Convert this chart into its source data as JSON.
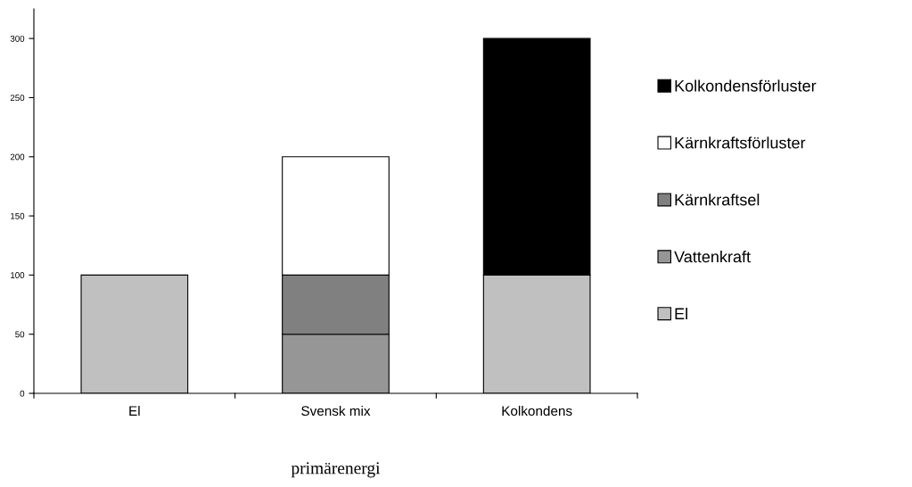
{
  "chart_data": {
    "type": "bar",
    "stacked": true,
    "xlabel": "primärenergi",
    "categories": [
      "El",
      "Svensk mix",
      "Kolkondens"
    ],
    "series": [
      {
        "name": "El",
        "color": "#c0c0c0",
        "values": [
          100,
          null,
          100
        ]
      },
      {
        "name": "Vattenkraft",
        "color": "#969696",
        "values": [
          null,
          50,
          null
        ]
      },
      {
        "name": "Kärnkraftsel",
        "color": "#808080",
        "values": [
          null,
          50,
          null
        ]
      },
      {
        "name": "Kärnkraftsförluster",
        "color": "#ffffff",
        "values": [
          null,
          100,
          null
        ]
      },
      {
        "name": "Kolkondensförluster",
        "color": "#000000",
        "values": [
          null,
          null,
          200
        ]
      }
    ],
    "ylim": [
      0,
      325
    ],
    "yticks": [
      0,
      50,
      100,
      150,
      200,
      250,
      300
    ],
    "grid": false,
    "legend": "right"
  }
}
